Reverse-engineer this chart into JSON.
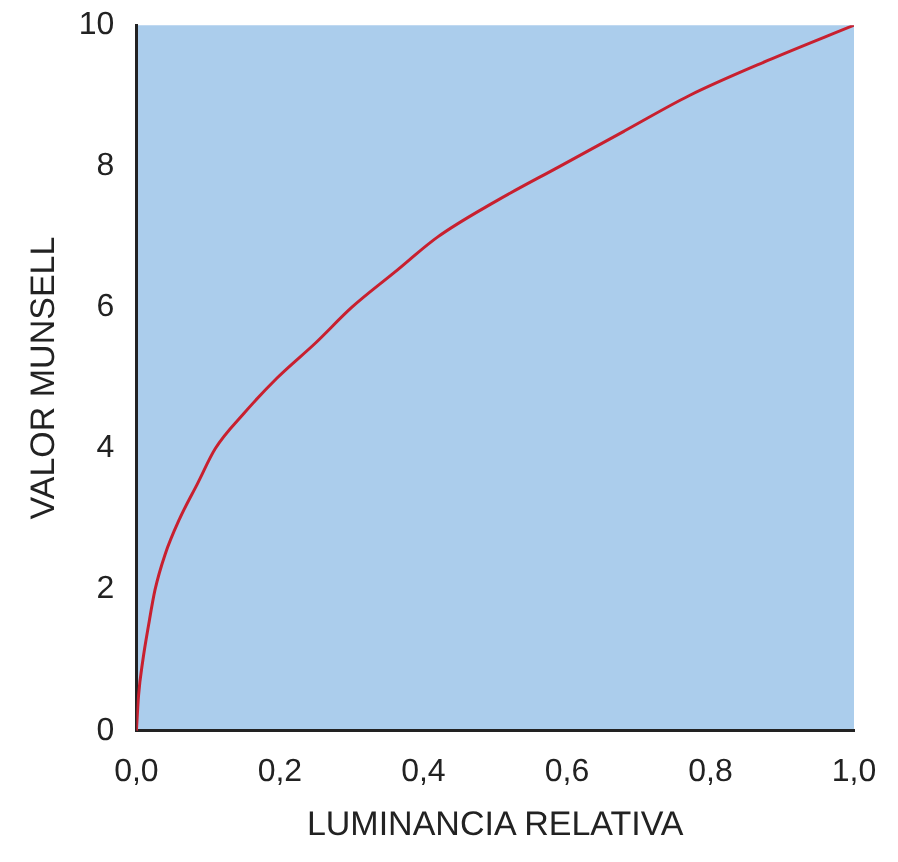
{
  "chart_data": {
    "type": "line",
    "xlabel": "LUMINANCIA RELATIVA",
    "ylabel": "VALOR MUNSELL",
    "x": [
      0,
      0.003,
      0.009,
      0.017,
      0.026,
      0.04,
      0.06,
      0.085,
      0.11,
      0.15,
      0.196,
      0.25,
      0.3,
      0.36,
      0.42,
      0.5,
      0.59,
      0.68,
      0.77,
      0.88,
      1.0
    ],
    "series": [
      {
        "color": "#c8202f",
        "values": [
          0,
          0.5,
          1,
          1.5,
          2,
          2.5,
          3,
          3.5,
          4,
          4.5,
          5,
          5.5,
          6,
          6.5,
          7,
          7.5,
          8,
          8.5,
          9,
          9.5,
          10
        ]
      }
    ],
    "xlim": [
      0,
      1
    ],
    "xticks": [
      {
        "value": 0,
        "label": "0,0"
      },
      {
        "value": 0.2,
        "label": "0,2"
      },
      {
        "value": 0.4,
        "label": "0,4"
      },
      {
        "value": 0.6,
        "label": "0,6"
      },
      {
        "value": 0.8,
        "label": "0,8"
      },
      {
        "value": 1,
        "label": "1,0"
      }
    ],
    "ylim": [
      0,
      10
    ],
    "yticks": [
      0,
      2,
      4,
      6,
      8,
      10
    ],
    "grid": false,
    "marker": "none",
    "line_style": "solid"
  }
}
